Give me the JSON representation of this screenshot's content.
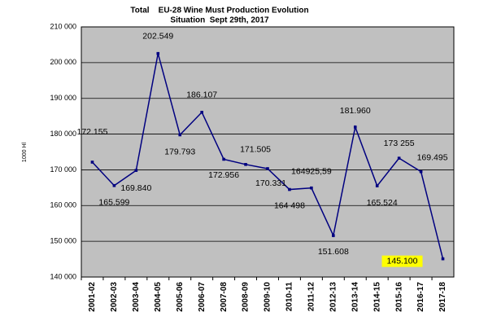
{
  "chart_data": {
    "type": "line",
    "title": "Total    EU-28 Wine Must Production Evolution",
    "subtitle": "Situation  Sept 29th, 2017",
    "y_axis_label": "1000 Hl",
    "categories": [
      "2001-02",
      "2002-03",
      "2003-04",
      "2004-05",
      "2005-06",
      "2006-07",
      "2007-08",
      "2008-09",
      "2009-10",
      "2010-11",
      "2011-12",
      "2012-13",
      "2013-14",
      "2014-15",
      "2015-16",
      "2016-17",
      "2017-18"
    ],
    "series": [
      {
        "name": "Total",
        "color": "#000080",
        "values": [
          172155,
          165599,
          169840,
          202549,
          179793,
          186107,
          172956,
          171505,
          170331,
          164498,
          164925.59,
          151608,
          181960,
          165524,
          173255,
          169495,
          145100
        ],
        "value_labels": [
          "172.155",
          "165.599",
          "169.840",
          "202.549",
          "179.793",
          "186.107",
          "172.956",
          "171.505",
          "170.331",
          "164 498",
          "164925,59",
          "151.608",
          "181.960",
          "165.524",
          "173 255",
          "169.495",
          "145.100"
        ]
      }
    ],
    "ylim": [
      140000,
      210000
    ],
    "yticks": [
      {
        "value": 140000,
        "label": "140 000"
      },
      {
        "value": 150000,
        "label": "150 000"
      },
      {
        "value": 160000,
        "label": "160 000"
      },
      {
        "value": 170000,
        "label": "170 000"
      },
      {
        "value": 180000,
        "label": "180 000"
      },
      {
        "value": 190000,
        "label": "190 000"
      },
      {
        "value": 200000,
        "label": "200 000"
      },
      {
        "value": 210000,
        "label": "210 000"
      }
    ],
    "grid": true,
    "background": "#c0c0c0",
    "highlight_color": "#ffff00"
  }
}
